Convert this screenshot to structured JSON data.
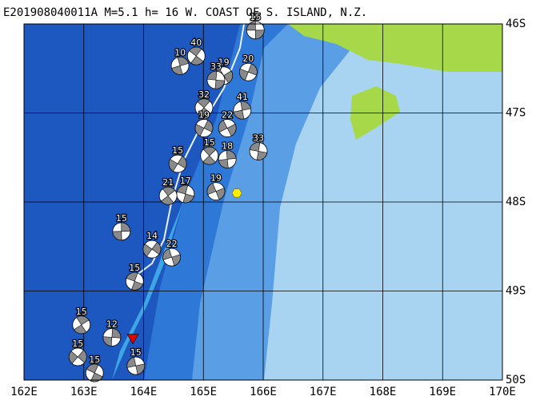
{
  "title": "E201908040011A  M=5.1  h= 16  W. COAST OF S. ISLAND, N.Z.",
  "map": {
    "xlim": [
      162,
      170
    ],
    "ylim": [
      -46,
      -50
    ],
    "xticks": [
      {
        "value": 162,
        "label": "162E"
      },
      {
        "value": 163,
        "label": "163E"
      },
      {
        "value": 164,
        "label": "164E"
      },
      {
        "value": 165,
        "label": "165E"
      },
      {
        "value": 166,
        "label": "166E"
      },
      {
        "value": 167,
        "label": "167E"
      },
      {
        "value": 168,
        "label": "168E"
      },
      {
        "value": 169,
        "label": "169E"
      },
      {
        "value": 170,
        "label": "170E"
      }
    ],
    "yticks": [
      {
        "value": -46,
        "label": "46S"
      },
      {
        "value": -47,
        "label": "47S"
      },
      {
        "value": -48,
        "label": "48S"
      },
      {
        "value": -49,
        "label": "49S"
      },
      {
        "value": -50,
        "label": "50S"
      }
    ],
    "epicenter": {
      "lon": 163.82,
      "lat": -49.53
    },
    "centroid": {
      "lon": 165.56,
      "lat": -47.9
    },
    "events": [
      {
        "lon": 165.87,
        "lat": -46.07,
        "label": 15
      },
      {
        "lon": 164.88,
        "lat": -46.36,
        "label": 40
      },
      {
        "lon": 164.61,
        "lat": -46.47,
        "label": 10
      },
      {
        "lon": 165.75,
        "lat": -46.54,
        "label": 20
      },
      {
        "lon": 165.34,
        "lat": -46.58,
        "label": 19
      },
      {
        "lon": 165.21,
        "lat": -46.63,
        "label": 33
      },
      {
        "lon": 165.01,
        "lat": -46.94,
        "label": 32
      },
      {
        "lon": 165.65,
        "lat": -46.97,
        "label": 41
      },
      {
        "lon": 165.01,
        "lat": -47.17,
        "label": 19
      },
      {
        "lon": 165.4,
        "lat": -47.17,
        "label": 22
      },
      {
        "lon": 165.92,
        "lat": -47.43,
        "label": 33
      },
      {
        "lon": 165.1,
        "lat": -47.48,
        "label": 15
      },
      {
        "lon": 165.4,
        "lat": -47.52,
        "label": 18
      },
      {
        "lon": 164.57,
        "lat": -47.57,
        "label": 15
      },
      {
        "lon": 165.21,
        "lat": -47.88,
        "label": 19
      },
      {
        "lon": 164.7,
        "lat": -47.91,
        "label": 17
      },
      {
        "lon": 164.41,
        "lat": -47.93,
        "label": 21
      },
      {
        "lon": 163.63,
        "lat": -48.33,
        "label": 15
      },
      {
        "lon": 164.14,
        "lat": -48.53,
        "label": 14
      },
      {
        "lon": 164.47,
        "lat": -48.62,
        "label": 22
      },
      {
        "lon": 163.85,
        "lat": -48.89,
        "label": 15
      },
      {
        "lon": 162.96,
        "lat": -49.38,
        "label": 15
      },
      {
        "lon": 163.47,
        "lat": -49.52,
        "label": 12
      },
      {
        "lon": 162.9,
        "lat": -49.74,
        "label": 15
      },
      {
        "lon": 163.87,
        "lat": -49.84,
        "label": 15
      },
      {
        "lon": 163.18,
        "lat": -49.92,
        "label": 15
      }
    ]
  }
}
